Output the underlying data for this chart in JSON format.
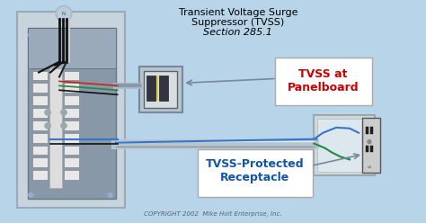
{
  "bg_color": "#b8d4e8",
  "title_line1": "Transient Voltage Surge",
  "title_line2": "Suppressor (TVSS)",
  "title_line3": "Section 285.1",
  "label1_text": "TVSS at\nPanelboard",
  "label2_text": "TVSS-Protected\nReceptacle",
  "copyright_text": "COPYRIGHT 2002  Mike Holt Enterprise, Inc.",
  "label1_color": "#cc0000",
  "label2_color": "#1155aa",
  "blue_wire": "#3377cc",
  "green_wire": "#228844",
  "red_wire": "#cc2222",
  "black_wire": "#111111",
  "white_wire": "#dddddd",
  "yellow": "#ddcc44",
  "panel_outer_color": "#c0c8cc",
  "panel_inner_color": "#8898a8",
  "breaker_white": "#e8e8e8",
  "bus_color": "#7888a0"
}
